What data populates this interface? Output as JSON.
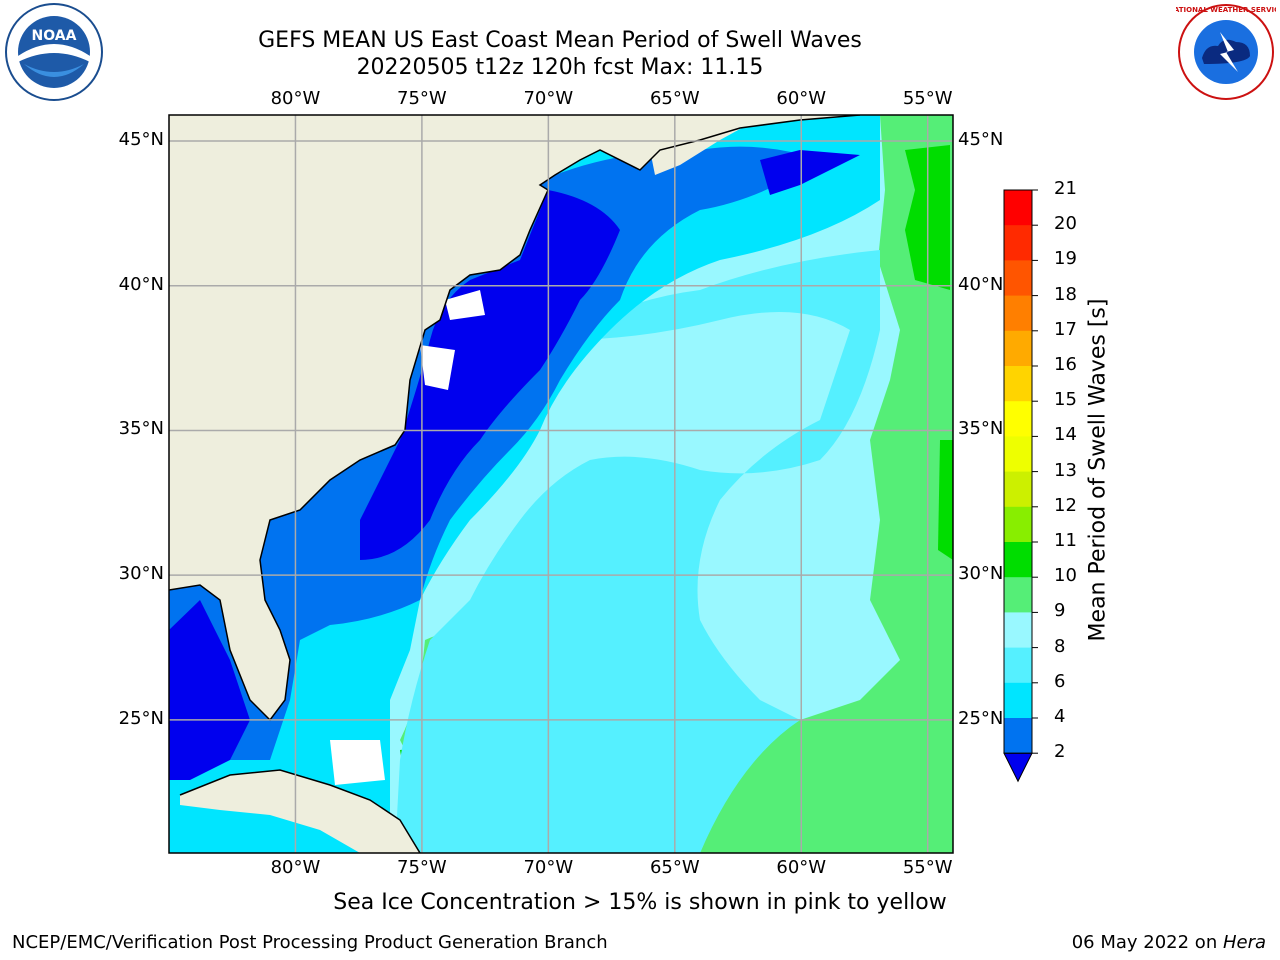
{
  "header": {
    "title_line1": "GEFS MEAN US East Coast Mean Period of Swell Waves",
    "title_line2": "20220505 t12z 120h fcst   Max: 11.15"
  },
  "map": {
    "lon_range": [
      -85,
      -54
    ],
    "lat_range": [
      20.4,
      45.9
    ],
    "lon_ticks": [
      "80°W",
      "75°W",
      "70°W",
      "65°W",
      "60°W",
      "55°W"
    ],
    "lat_ticks": [
      "45°N",
      "40°N",
      "35°N",
      "30°N",
      "25°N"
    ],
    "lon_values": [
      -80,
      -75,
      -70,
      -65,
      -60,
      -55
    ],
    "lat_values": [
      45,
      40,
      35,
      30,
      25
    ],
    "colors": {
      "land": "#eeeedd",
      "p2_4": "#0000ee",
      "p4_6": "#0073f0",
      "p6_8": "#00e5ff",
      "p8_9": "#55f0ff",
      "p9_10": "#99f8ff",
      "p10_11": "#55ee77",
      "p11_12": "#00dd00"
    }
  },
  "colorbar": {
    "title": "Mean Period of Swell Waves [s]",
    "labels": [
      "21",
      "20",
      "19",
      "18",
      "17",
      "16",
      "15",
      "14",
      "13",
      "12",
      "11",
      "10",
      "9",
      "8",
      "6",
      "4",
      "2"
    ],
    "colors": [
      "#ff0000",
      "#ff2a00",
      "#ff5500",
      "#ff7f00",
      "#ffaa00",
      "#ffd400",
      "#ffff00",
      "#eeff00",
      "#ccf000",
      "#88ee00",
      "#00dd00",
      "#55ee77",
      "#99f8ff",
      "#55f0ff",
      "#00e5ff",
      "#0073f0",
      "#0000ee"
    ]
  },
  "logos": {
    "noaa_text": "NOAA",
    "nws_text": "NATIONAL WEATHER SERVICE"
  },
  "footer": {
    "caption": "Sea Ice Concentration > 15% is shown in pink to yellow",
    "credit": "NCEP/EMC/Verification Post Processing Product Generation Branch",
    "date_prefix": "06 May 2022 on ",
    "date_host": "Hera"
  }
}
